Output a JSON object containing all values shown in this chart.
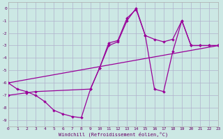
{
  "bg_color": "#cce8e4",
  "line_color": "#990099",
  "grid_color": "#b0b0cc",
  "xlim": [
    0,
    23
  ],
  "ylim": [
    -9.5,
    0.5
  ],
  "xticks": [
    0,
    1,
    2,
    3,
    4,
    5,
    6,
    7,
    8,
    9,
    10,
    11,
    12,
    13,
    14,
    15,
    16,
    17,
    18,
    19,
    20,
    21,
    22,
    23
  ],
  "yticks": [
    0,
    -1,
    -2,
    -3,
    -4,
    -5,
    -6,
    -7,
    -8,
    -9
  ],
  "xlabel": "Windchill (Refroidissement éolien,°C)",
  "line1_x": [
    0,
    1,
    2,
    3,
    4,
    5,
    6,
    7,
    8,
    9,
    10,
    11,
    12,
    13,
    14,
    15,
    16,
    17,
    18,
    19,
    20,
    21,
    22,
    23
  ],
  "line1_y": [
    -6.0,
    -6.5,
    -6.7,
    -7.0,
    -7.5,
    -8.2,
    -8.5,
    -8.7,
    -8.8,
    -6.5,
    -4.8,
    -2.8,
    -2.6,
    -0.8,
    -0.1,
    -2.2,
    -2.5,
    -2.7,
    -2.5,
    -1.0,
    -3.0,
    -3.0,
    -3.0,
    -3.0
  ],
  "line2_x": [
    0,
    23
  ],
  "line2_y": [
    -6.0,
    -3.0
  ],
  "line3_x": [
    0,
    2,
    3,
    9,
    10,
    11,
    12,
    13,
    14,
    15,
    16,
    17,
    18,
    19,
    20,
    21,
    22,
    23
  ],
  "line3_y": [
    -7.0,
    -6.8,
    -6.7,
    -6.5,
    -4.8,
    -3.0,
    -2.7,
    -1.0,
    0.0,
    -2.2,
    -6.5,
    -6.7,
    -3.5,
    -1.0,
    -3.0,
    -3.0,
    -3.0,
    -3.0
  ],
  "linewidth": 0.9,
  "markersize": 2.3,
  "marker": "D",
  "tick_color": "#660066",
  "tick_fontsize": 4.5,
  "xlabel_fontsize": 5.0
}
